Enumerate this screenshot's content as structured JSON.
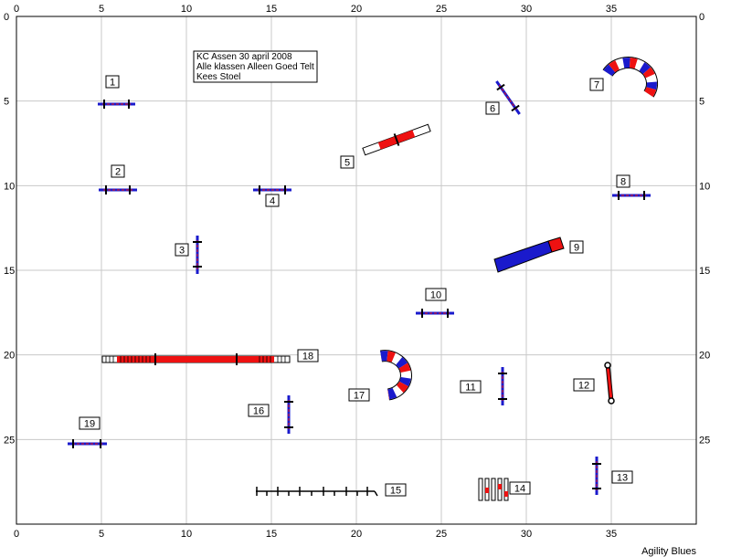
{
  "course_info": {
    "lines": [
      "KC Assen 30 april 2008",
      "Alle klassen Alleen Goed Telt",
      "Kees Stoel"
    ]
  },
  "credit": "Agility Blues",
  "axis": {
    "x_ticks": [
      "0",
      "5",
      "10",
      "15",
      "20",
      "25",
      "30",
      "35"
    ],
    "y_ticks": [
      "0",
      "5",
      "10",
      "15",
      "20",
      "25"
    ],
    "x_range": [
      0,
      40
    ],
    "y_range": [
      0,
      30
    ]
  },
  "colors": {
    "blue": "#1a1acc",
    "red": "#ee1111",
    "grid": "#c8c8c8",
    "black": "#000000"
  },
  "obstacles": [
    {
      "number": "1",
      "type": "jump",
      "x": 5.9,
      "y": 5.1
    },
    {
      "number": "2",
      "type": "jump",
      "x": 6.0,
      "y": 10.2
    },
    {
      "number": "3",
      "type": "jump",
      "x": 10.7,
      "y": 14.0
    },
    {
      "number": "4",
      "type": "jump",
      "x": 15.0,
      "y": 10.2
    },
    {
      "number": "5",
      "type": "seesaw",
      "x": 22.9,
      "y": 7.5
    },
    {
      "number": "6",
      "type": "jump",
      "x": 28.9,
      "y": 4.9
    },
    {
      "number": "7",
      "type": "tunnel-curved",
      "x": 36.2,
      "y": 3.6
    },
    {
      "number": "8",
      "type": "jump",
      "x": 36.3,
      "y": 10.6
    },
    {
      "number": "9",
      "type": "chute",
      "x": 30.4,
      "y": 14.0
    },
    {
      "number": "10",
      "type": "jump",
      "x": 24.6,
      "y": 17.5
    },
    {
      "number": "11",
      "type": "jump",
      "x": 28.6,
      "y": 22.0
    },
    {
      "number": "12",
      "type": "tire",
      "x": 35.0,
      "y": 21.6
    },
    {
      "number": "13",
      "type": "jump",
      "x": 34.4,
      "y": 26.9
    },
    {
      "number": "14",
      "type": "weave",
      "x": 28.0,
      "y": 28.0
    },
    {
      "number": "15",
      "type": "long-jump-row",
      "x": 17.5,
      "y": 28.0
    },
    {
      "number": "16",
      "type": "jump",
      "x": 15.9,
      "y": 23.5
    },
    {
      "number": "17",
      "type": "tunnel-curved",
      "x": 22.3,
      "y": 21.1
    },
    {
      "number": "18",
      "type": "dogwalk",
      "x": 10.6,
      "y": 20.2
    },
    {
      "number": "19",
      "type": "jump",
      "x": 4.2,
      "y": 25.2
    }
  ]
}
